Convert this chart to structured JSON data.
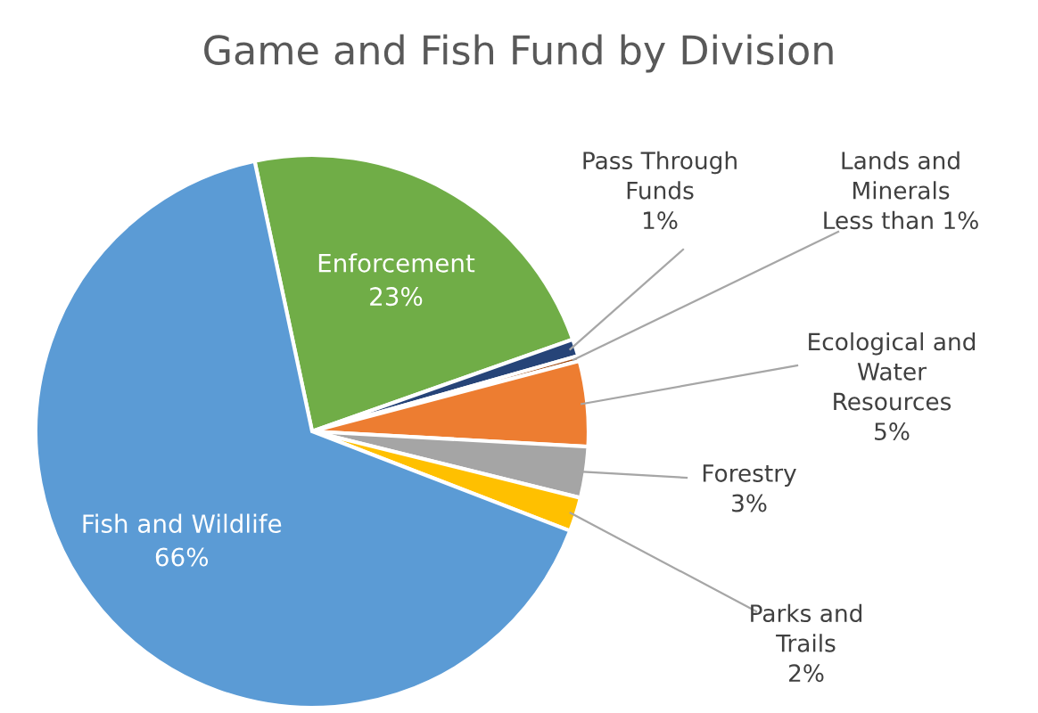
{
  "chart_data": {
    "type": "pie",
    "title": "Game and Fish Fund by Division",
    "categories": [
      "Enforcement",
      "Pass Through\nFunds",
      "Lands and\nMinerals",
      "Ecological and\nWater\nResources",
      "Forestry",
      "Parks and\nTrails",
      "Fish and Wildlife"
    ],
    "values": [
      23,
      1,
      0.3,
      5,
      3,
      2,
      66
    ],
    "value_labels": [
      "23%",
      "1%",
      "Less than 1%",
      "5%",
      "3%",
      "2%",
      "66%"
    ],
    "colors": [
      "#70ad47",
      "#264478",
      "#9e480e",
      "#ed7d31",
      "#a5a5a5",
      "#ffc000",
      "#5b9bd5"
    ]
  }
}
